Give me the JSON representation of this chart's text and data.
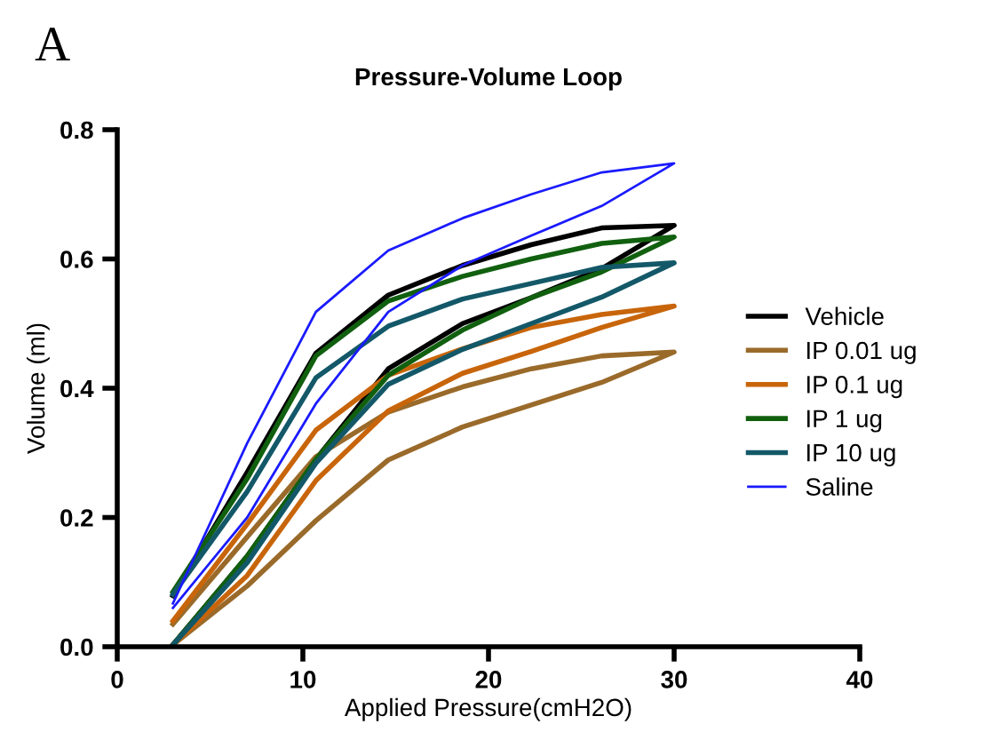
{
  "chart_data": {
    "type": "line",
    "title": "Pressure-Volume Loop",
    "xlabel": "Applied Pressure(cmH2O)",
    "ylabel": "Volume (ml)",
    "annotations": [
      "A"
    ],
    "xlim": [
      0,
      40
    ],
    "xticks": [
      0,
      10,
      20,
      30,
      40
    ],
    "ylim": [
      0,
      0.8
    ],
    "yticks": [
      {
        "value": 0,
        "label": "0.0"
      },
      {
        "value": 0.2,
        "label": "0.2"
      },
      {
        "value": 0.4,
        "label": "0.4"
      },
      {
        "value": 0.6,
        "label": "0.6"
      },
      {
        "value": 0.8,
        "label": "0.8"
      }
    ],
    "grid": false,
    "legend": "right",
    "marker": "none",
    "line_style": "solid",
    "series": [
      {
        "name": "Vehicle",
        "color": "#000000",
        "x": [
          3,
          7,
          10.7,
          14.6,
          18.6,
          22.3,
          26.1,
          30,
          26.1,
          22.3,
          18.6,
          14.6,
          10.7,
          7,
          3
        ],
        "values": [
          0.003,
          0.14,
          0.29,
          0.43,
          0.5,
          0.54,
          0.585,
          0.652,
          0.648,
          0.622,
          0.59,
          0.544,
          0.454,
          0.27,
          0.079
        ]
      },
      {
        "name": "IP 0.01 ug",
        "color": "#9a6a2a",
        "x": [
          3,
          7,
          10.7,
          14.6,
          18.6,
          22.3,
          26.1,
          30,
          26.1,
          22.3,
          18.6,
          14.6,
          10.7,
          7,
          3
        ],
        "values": [
          0.003,
          0.094,
          0.195,
          0.289,
          0.34,
          0.374,
          0.409,
          0.456,
          0.45,
          0.43,
          0.402,
          0.363,
          0.294,
          0.17,
          0.035
        ]
      },
      {
        "name": "IP 0.1 ug",
        "color": "#c8650a",
        "x": [
          3,
          7,
          10.7,
          14.6,
          18.6,
          22.3,
          26.1,
          30,
          26.1,
          22.3,
          18.6,
          14.6,
          10.7,
          7,
          3
        ],
        "values": [
          0.003,
          0.11,
          0.257,
          0.365,
          0.423,
          0.457,
          0.494,
          0.527,
          0.514,
          0.494,
          0.461,
          0.42,
          0.335,
          0.19,
          0.04
        ]
      },
      {
        "name": "IP 1 ug",
        "color": "#11600f",
        "x": [
          3,
          7,
          10.7,
          14.6,
          18.6,
          22.3,
          26.1,
          30,
          26.1,
          22.3,
          18.6,
          14.6,
          10.7,
          7,
          3
        ],
        "values": [
          0.003,
          0.14,
          0.29,
          0.42,
          0.49,
          0.54,
          0.58,
          0.634,
          0.624,
          0.6,
          0.573,
          0.535,
          0.45,
          0.26,
          0.085
        ]
      },
      {
        "name": "IP 10 ug",
        "color": "#135868",
        "x": [
          3,
          7,
          10.7,
          14.6,
          18.6,
          22.3,
          26.1,
          30,
          26.1,
          22.3,
          18.6,
          14.6,
          10.7,
          7,
          3
        ],
        "values": [
          0.003,
          0.13,
          0.284,
          0.406,
          0.46,
          0.5,
          0.541,
          0.594,
          0.587,
          0.562,
          0.538,
          0.496,
          0.416,
          0.24,
          0.081
        ]
      },
      {
        "name": "Saline",
        "color": "#1a1aff",
        "x": [
          3,
          7,
          10.7,
          14.6,
          18.6,
          22.3,
          26.1,
          30,
          26.1,
          22.3,
          18.6,
          14.6,
          10.7,
          7,
          3
        ],
        "values": [
          0.06,
          0.2,
          0.376,
          0.518,
          0.59,
          0.636,
          0.682,
          0.748,
          0.734,
          0.7,
          0.663,
          0.613,
          0.518,
          0.315,
          0.067
        ]
      }
    ]
  }
}
